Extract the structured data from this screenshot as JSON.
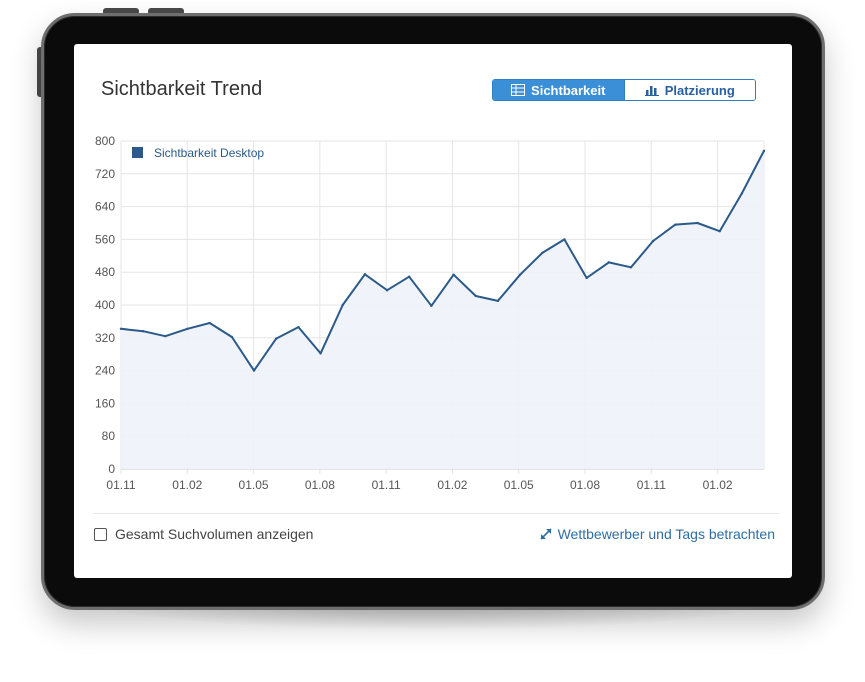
{
  "card": {
    "title": "Sichtbarkeit Trend",
    "toggle": {
      "active_label": "Sichtbarkeit",
      "active_icon": "table-icon",
      "inactive_label": "Platzierung",
      "inactive_icon": "bar-chart-icon"
    },
    "footer": {
      "checkbox_label": "Gesamt Suchvolumen anzeigen",
      "checkbox_checked": false,
      "link_label": "Wettbewerber und Tags betrachten",
      "link_icon": "expand-arrows-icon"
    }
  },
  "colors": {
    "line": "#2b5a8a",
    "fill": "#eef3f9",
    "accent": "#3b8fd6",
    "grid": "#e5e5e5"
  },
  "chart_data": {
    "type": "area",
    "title": "",
    "xlabel": "",
    "ylabel": "",
    "ylim": [
      0,
      800
    ],
    "yticks": [
      0,
      80,
      160,
      240,
      320,
      400,
      480,
      560,
      640,
      720,
      800
    ],
    "xtick_labels": [
      "01.11",
      "01.02",
      "01.05",
      "01.08",
      "01.11",
      "01.02",
      "01.05",
      "01.08",
      "01.11",
      "01.02"
    ],
    "grid": true,
    "legend_placement": "top-left",
    "series": [
      {
        "name": "Sichtbarkeit Desktop",
        "color": "#2b5a8a",
        "values": [
          342,
          336,
          324,
          342,
          356,
          322,
          240,
          318,
          346,
          282,
          400,
          475,
          436,
          469,
          398,
          474,
          422,
          410,
          474,
          527,
          560,
          466,
          504,
          492,
          556,
          596,
          600,
          580,
          672,
          776
        ]
      }
    ]
  }
}
